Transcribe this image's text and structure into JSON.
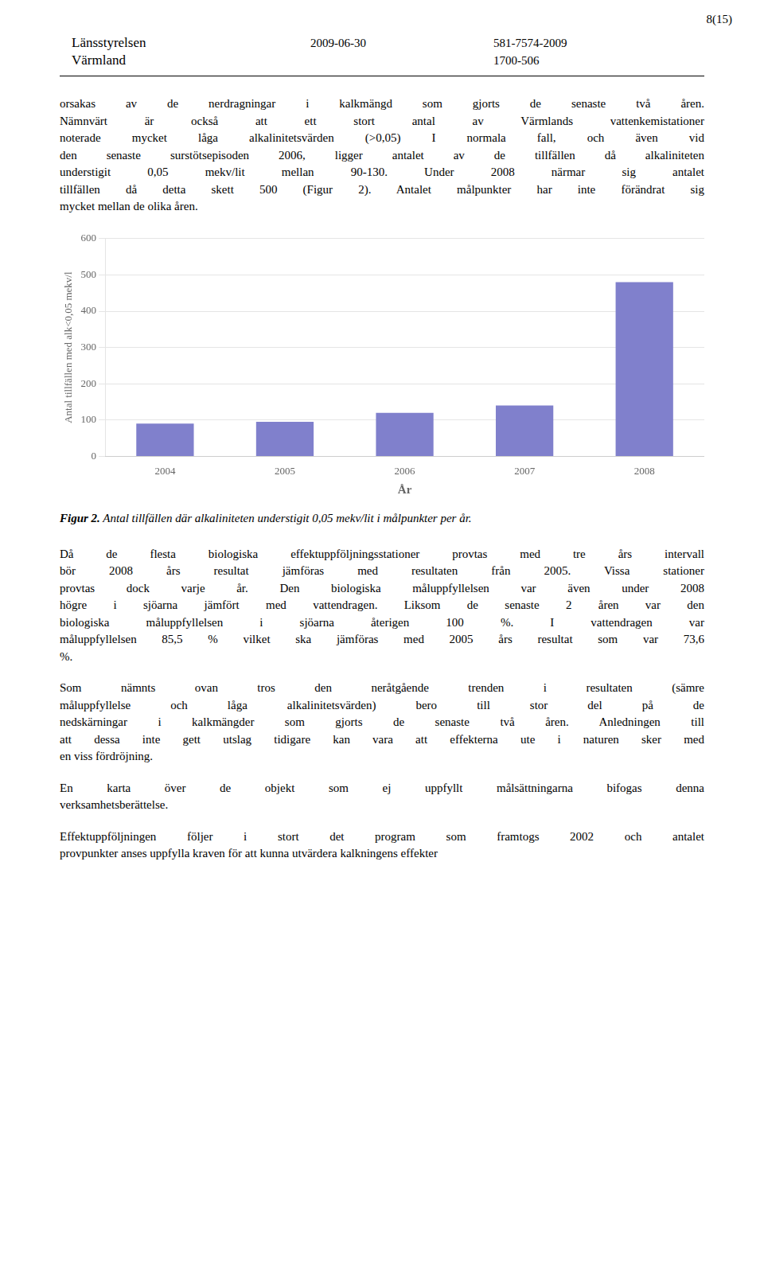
{
  "chart_data": {
    "type": "bar",
    "categories": [
      "2004",
      "2005",
      "2006",
      "2007",
      "2008"
    ],
    "values": [
      90,
      95,
      120,
      140,
      480
    ],
    "color": "#8080cc",
    "xlabel": "År",
    "ylabel": "Antal tillfällen med alk<0,05 mekv/l",
    "ylim": [
      0,
      600
    ],
    "yticks": [
      0,
      100,
      200,
      300,
      400,
      500,
      600
    ],
    "grid": true,
    "annotations": [
      [
        "8(15)",
        "Länsstyrelsen",
        "Värmland",
        "2009-06-30",
        "581-7574-2009",
        "1700-506"
      ],
      [
        "orsakas av de nerdragningar i kalkmängd som gjorts de senaste två åren.",
        "Nämnvärt är också att ett stort antal av Värmlands vattenkemistationer",
        "noterade mycket låga alkalinitetsvärden (>0,05) I normala fall, och även vid",
        "den senaste surstötsepisoden 2006, ligger antalet av de tillfällen då alkaliniteten",
        "understigit 0,05 mekv/lit mellan 90-130. Under 2008 närmar sig antalet",
        "tillfällen då detta skett 500 (Figur 2). Antalet målpunkter har inte förändrat sig",
        "mycket mellan de olika åren."
      ],
      [
        "Figur 2.",
        " Antal tillfällen där alkaliniteten understigit 0,05 mekv/lit i målpunkter per år."
      ],
      [
        "Då de flesta biologiska effektuppföljningsstationer provtas med tre års intervall",
        "bör 2008 års resultat jämföras med resultaten från 2005. Vissa stationer",
        "provtas dock varje år. Den biologiska måluppfyllelsen var även under 2008",
        "högre i sjöarna jämfört med vattendragen. Liksom de senaste 2 åren var den",
        "biologiska måluppfyllelsen i sjöarna återigen 100 %. I vattendragen var",
        "måluppfyllelsen 85,5 % vilket ska jämföras med 2005 års resultat som var 73,6",
        "%."
      ],
      [
        "Som nämnts ovan tros den neråtgående trenden i resultaten (sämre",
        "måluppfyllelse och låga alkalinitetsvärden) bero till stor del på de",
        "nedskärningar i kalkmängder som gjorts de senaste två åren. Anledningen till",
        "att dessa inte gett utslag tidigare kan vara att effekterna ute i naturen sker med",
        "en viss fördröjning."
      ],
      [
        "En karta över de objekt som ej uppfyllt målsättningarna bifogas denna",
        "verksamhetsberättelse."
      ],
      [
        "Effektuppföljningen följer i stort det program som framtogs 2002 och antalet",
        "provpunkter anses uppfylla kraven för att kunna utvärdera kalkningens effekter"
      ]
    ]
  }
}
